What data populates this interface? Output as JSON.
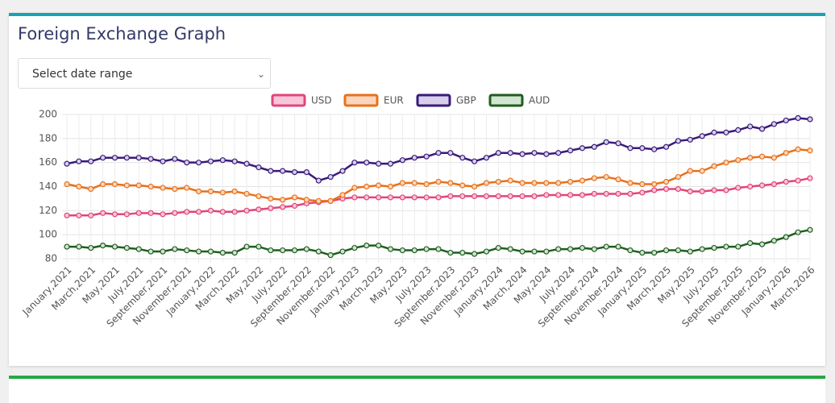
{
  "header": {
    "title": "Foreign Exchange Graph"
  },
  "select": {
    "placeholder": "Select date range"
  },
  "chart_data": {
    "type": "line",
    "categories": [
      "January,2021",
      null,
      "March,2021",
      null,
      "May,2021",
      null,
      "July,2021",
      null,
      "September,2021",
      null,
      "November,2021",
      null,
      "January,2022",
      null,
      "March,2022",
      null,
      "May,2022",
      null,
      "July,2022",
      null,
      "September,2022",
      null,
      "November,2022",
      null,
      "January,2023",
      null,
      "March,2023",
      null,
      "May,2023",
      null,
      "July,2023",
      null,
      "September,2023",
      null,
      "November,2023",
      null,
      "January,2024",
      null,
      "March,2024",
      null,
      "May,2024",
      null,
      "July,2024",
      null,
      "September,2024",
      null,
      "November,2024",
      null,
      "January,2025",
      null,
      "March,2025",
      null,
      "May,2025",
      null,
      "July,2025",
      null,
      "September,2025",
      null,
      "November,2025",
      null,
      "January,2026",
      null,
      "March,2026"
    ],
    "series": [
      {
        "name": "USD",
        "color": "#e0457b",
        "fill": "#f7c6d8",
        "values": [
          116,
          116,
          116,
          118,
          117,
          117,
          118,
          118,
          117,
          118,
          119,
          119,
          120,
          119,
          119,
          120,
          121,
          122,
          123,
          124,
          126,
          127,
          128,
          130,
          131,
          131,
          131,
          131,
          131,
          131,
          131,
          131,
          132,
          132,
          132,
          132,
          132,
          132,
          132,
          132,
          133,
          133,
          133,
          133,
          134,
          134,
          134,
          134,
          135,
          137,
          138,
          138,
          136,
          136,
          137,
          137,
          139,
          140,
          141,
          142,
          144,
          145,
          147
        ]
      },
      {
        "name": "EUR",
        "color": "#e8711a",
        "fill": "#f9d6bd",
        "values": [
          142,
          140,
          138,
          142,
          142,
          141,
          141,
          140,
          139,
          138,
          139,
          136,
          136,
          135,
          136,
          134,
          132,
          130,
          129,
          131,
          129,
          128,
          128,
          133,
          139,
          140,
          141,
          140,
          143,
          143,
          142,
          144,
          143,
          141,
          140,
          143,
          144,
          145,
          143,
          143,
          143,
          143,
          144,
          145,
          147,
          148,
          146,
          143,
          142,
          142,
          144,
          148,
          153,
          153,
          157,
          160,
          162,
          164,
          165,
          164,
          168,
          171,
          170
        ]
      },
      {
        "name": "GBP",
        "color": "#3a1a7a",
        "fill": "#d8d0ea",
        "values": [
          159,
          161,
          161,
          164,
          164,
          164,
          164,
          163,
          161,
          163,
          160,
          160,
          161,
          162,
          161,
          159,
          156,
          153,
          153,
          152,
          152,
          145,
          148,
          153,
          160,
          160,
          159,
          159,
          162,
          164,
          165,
          168,
          168,
          164,
          161,
          164,
          168,
          168,
          167,
          168,
          167,
          168,
          170,
          172,
          173,
          177,
          176,
          172,
          172,
          171,
          173,
          178,
          179,
          182,
          185,
          185,
          187,
          190,
          188,
          192,
          195,
          197,
          196
        ]
      },
      {
        "name": "AUD",
        "color": "#1e5e1e",
        "fill": "#d2e4d2",
        "values": [
          90,
          90,
          89,
          91,
          90,
          89,
          88,
          86,
          86,
          88,
          87,
          86,
          86,
          85,
          85,
          90,
          90,
          87,
          87,
          87,
          88,
          86,
          83,
          86,
          89,
          91,
          91,
          88,
          87,
          87,
          88,
          88,
          85,
          85,
          84,
          86,
          89,
          88,
          86,
          86,
          86,
          88,
          88,
          89,
          88,
          90,
          90,
          87,
          85,
          85,
          87,
          87,
          86,
          88,
          89,
          90,
          90,
          93,
          92,
          95,
          98,
          102,
          104
        ]
      }
    ],
    "ylim": [
      80,
      200
    ],
    "yticks": [
      80,
      100,
      120,
      140,
      160,
      180,
      200
    ],
    "grid": true,
    "legend": "top"
  }
}
